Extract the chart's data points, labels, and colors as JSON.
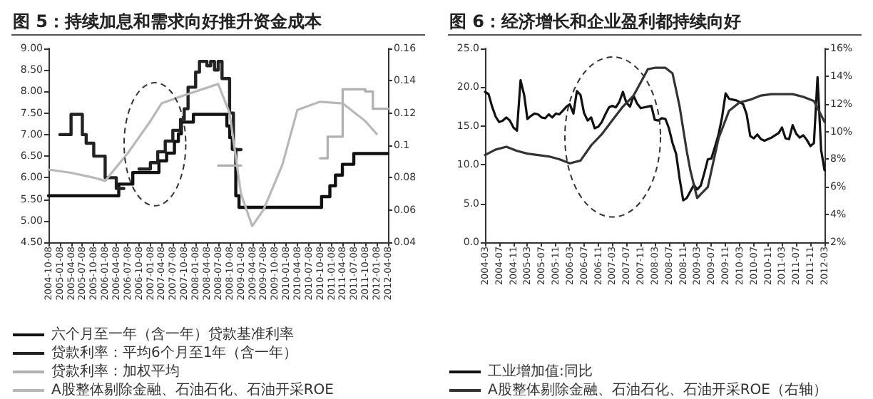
{
  "chart_data": [
    {
      "type": "line",
      "title": "图 5：持续加息和需求向好推升资金成本",
      "xlim": [
        "2004-10-08",
        "2012-04-08"
      ],
      "xticks": [
        "2004-10-08",
        "2005-01-08",
        "2005-04-08",
        "2005-07-08",
        "2005-10-08",
        "2006-01-08",
        "2006-04-08",
        "2006-07-08",
        "2006-10-08",
        "2007-01-08",
        "2007-04-08",
        "2007-07-08",
        "2007-10-08",
        "2008-01-08",
        "2008-04-08",
        "2008-07-08",
        "2008-10-08",
        "2009-01-08",
        "2009-04-08",
        "2009-07-08",
        "2009-10-08",
        "2010-01-08",
        "2010-04-08",
        "2010-07-08",
        "2010-10-08",
        "2011-01-08",
        "2011-04-08",
        "2011-07-08",
        "2011-10-08",
        "2012-01-08",
        "2012-04-08"
      ],
      "ylim": [
        4.5,
        9
      ],
      "yticks": [
        {
          "value": 4.5,
          "label": "4.50"
        },
        {
          "value": 5,
          "label": "5.00"
        },
        {
          "value": 5.5,
          "label": "5.50"
        },
        {
          "value": 6,
          "label": "6.00"
        },
        {
          "value": 6.5,
          "label": "6.50"
        },
        {
          "value": 7,
          "label": "7.00"
        },
        {
          "value": 7.5,
          "label": "7.50"
        },
        {
          "value": 8,
          "label": "8.00"
        },
        {
          "value": 8.5,
          "label": "8.50"
        },
        {
          "value": 9,
          "label": "9.00"
        }
      ],
      "y2lim": [
        0.04,
        0.16
      ],
      "y2ticks": [
        0.04,
        0.06,
        0.08,
        0.1,
        0.12,
        0.14,
        0.16
      ],
      "grid": false,
      "legend": "bottom",
      "marker": "none",
      "line_style": "solid",
      "series": [
        {
          "name": "六个月至一年（含一年）贷款基准利率",
          "type": "step",
          "color": "#111111",
          "x": [
            "2004-10-08",
            "2006-04-28",
            "2006-08-19",
            "2007-03-18",
            "2007-05-19",
            "2007-07-21",
            "2007-08-22",
            "2007-09-15",
            "2007-12-21",
            "2008-09-16",
            "2008-10-09",
            "2008-10-30",
            "2008-11-27",
            "2008-12-23",
            "2010-10-20",
            "2010-12-26",
            "2011-02-09",
            "2011-04-06",
            "2011-07-07",
            "2012-04-08"
          ],
          "values": [
            5.58,
            5.85,
            6.12,
            6.39,
            6.57,
            6.84,
            7.02,
            7.29,
            7.47,
            7.2,
            6.93,
            6.66,
            5.58,
            5.31,
            5.56,
            5.81,
            6.06,
            6.31,
            6.56,
            6.56
          ]
        },
        {
          "name": "贷款利率：平均6个月至1年（含一年）",
          "type": "step",
          "color": "#222222",
          "x": [
            "2005-01-08",
            "2005-04-08",
            "2005-07-08",
            "2005-08-08",
            "2005-10-08",
            "2006-01-08",
            "2006-04-08",
            "2006-06-08",
            "2006-10-08",
            "2007-01-08",
            "2007-03-08",
            "2007-05-08",
            "2007-07-08",
            "2007-09-08",
            "2007-10-08",
            "2007-11-08",
            "2008-01-08",
            "2008-02-08",
            "2008-04-08",
            "2008-05-08",
            "2008-06-08",
            "2008-07-08",
            "2008-08-08",
            "2008-10-08",
            "2008-11-08",
            "2009-01-08"
          ],
          "values": [
            7.0,
            7.47,
            7.0,
            6.8,
            6.5,
            6.0,
            5.75,
            null,
            6.2,
            6.35,
            6.6,
            6.85,
            7.1,
            7.35,
            7.6,
            8.1,
            8.45,
            8.7,
            8.6,
            8.7,
            8.5,
            8.7,
            8.3,
            7.5,
            6.65,
            6.65
          ]
        },
        {
          "name": "贷款利率：加权平均",
          "type": "step",
          "color": "#b0b0b0",
          "x": [
            "2008-07-08",
            "2008-12-08",
            "2009-01-08",
            "2010-10-08",
            "2010-12-08",
            "2011-04-08",
            "2011-10-08",
            "2011-12-08",
            "2012-04-08"
          ],
          "values": [
            6.28,
            6.28,
            null,
            6.45,
            6.95,
            8.05,
            8.0,
            7.6,
            7.6
          ]
        },
        {
          "name": "A股整体剔除金融、石油石化、石油开采ROE",
          "axis": "y2",
          "color": "#b8b8b8",
          "x": [
            "2004-10-08",
            "2005-04-08",
            "2005-10-08",
            "2006-01-08",
            "2006-07-08",
            "2007-01-08",
            "2007-04-08",
            "2007-10-08",
            "2008-07-08",
            "2008-10-08",
            "2009-01-08",
            "2009-04-08",
            "2009-07-08",
            "2009-12-08",
            "2010-04-08",
            "2010-10-08",
            "2011-04-08",
            "2011-10-08",
            "2012-01-08"
          ],
          "values": [
            0.085,
            0.083,
            0.08,
            0.078,
            0.095,
            0.115,
            0.126,
            0.131,
            0.138,
            0.12,
            0.07,
            0.05,
            0.06,
            0.088,
            0.122,
            0.127,
            0.126,
            0.115,
            0.107
          ]
        }
      ]
    },
    {
      "type": "line",
      "title": "图 6：经济增长和企业盈利都持续向好",
      "xlim": [
        "2004-03",
        "2012-03"
      ],
      "xticks": [
        "2004-03",
        "2004-07",
        "2004-11",
        "2005-03",
        "2005-07",
        "2005-11",
        "2006-03",
        "2006-07",
        "2006-11",
        "2007-03",
        "2007-07",
        "2007-11",
        "2008-03",
        "2008-07",
        "2008-11",
        "2009-03",
        "2009-07",
        "2009-11",
        "2010-03",
        "2010-07",
        "2010-11",
        "2011-03",
        "2011-07",
        "2011-11",
        "2012-03"
      ],
      "ylim": [
        0,
        25
      ],
      "yticks": [
        {
          "value": 0,
          "label": "0.0"
        },
        {
          "value": 5,
          "label": "5.0"
        },
        {
          "value": 10,
          "label": "10.0"
        },
        {
          "value": 15,
          "label": "15.0"
        },
        {
          "value": 20,
          "label": "20.0"
        },
        {
          "value": 25,
          "label": "25.0"
        }
      ],
      "y2lim": [
        2,
        16
      ],
      "y2ticks": [
        {
          "value": 2,
          "label": "2%"
        },
        {
          "value": 4,
          "label": "4%"
        },
        {
          "value": 6,
          "label": "6%"
        },
        {
          "value": 8,
          "label": "8%"
        },
        {
          "value": 10,
          "label": "10%"
        },
        {
          "value": 12,
          "label": "12%"
        },
        {
          "value": 14,
          "label": "14%"
        },
        {
          "value": 16,
          "label": "16%"
        }
      ],
      "grid": false,
      "legend": "bottom",
      "marker": "none",
      "line_style": "solid",
      "series": [
        {
          "name": "工业增加值:同比",
          "color": "#111111",
          "x": [
            "2004-03",
            "2004-04",
            "2004-05",
            "2004-06",
            "2004-07",
            "2004-08",
            "2004-09",
            "2004-10",
            "2004-11",
            "2004-12",
            "2005-01",
            "2005-02",
            "2005-03",
            "2005-04",
            "2005-05",
            "2005-06",
            "2005-07",
            "2005-08",
            "2005-09",
            "2005-10",
            "2005-11",
            "2005-12",
            "2006-01",
            "2006-02",
            "2006-03",
            "2006-04",
            "2006-05",
            "2006-06",
            "2006-07",
            "2006-08",
            "2006-09",
            "2006-10",
            "2006-11",
            "2006-12",
            "2007-01",
            "2007-02",
            "2007-03",
            "2007-04",
            "2007-05",
            "2007-06",
            "2007-07",
            "2007-08",
            "2007-09",
            "2007-10",
            "2007-11",
            "2007-12",
            "2008-01",
            "2008-02",
            "2008-03",
            "2008-04",
            "2008-05",
            "2008-06",
            "2008-07",
            "2008-08",
            "2008-09",
            "2008-10",
            "2008-11",
            "2008-12",
            "2009-02",
            "2009-03",
            "2009-04",
            "2009-05",
            "2009-06",
            "2009-07",
            "2009-08",
            "2009-09",
            "2009-10",
            "2009-11",
            "2009-12",
            "2010-02",
            "2010-03",
            "2010-04",
            "2010-05",
            "2010-06",
            "2010-07",
            "2010-08",
            "2010-09",
            "2010-10",
            "2010-11",
            "2010-12",
            "2011-02",
            "2011-03",
            "2011-04",
            "2011-05",
            "2011-06",
            "2011-07",
            "2011-08",
            "2011-09",
            "2011-10",
            "2011-11",
            "2011-12",
            "2012-01",
            "2012-02",
            "2012-03"
          ],
          "values": [
            19.4,
            19.1,
            17.5,
            16.2,
            15.5,
            15.7,
            16.1,
            15.7,
            14.8,
            14.4,
            20.9,
            19.0,
            15.9,
            16.3,
            16.6,
            16.5,
            16.1,
            16.0,
            16.5,
            16.1,
            16.6,
            16.5,
            17.0,
            17.5,
            17.8,
            16.6,
            19.5,
            19.0,
            16.7,
            15.7,
            16.1,
            14.7,
            14.9,
            15.5,
            16.5,
            17.4,
            17.6,
            17.4,
            18.1,
            19.4,
            18.0,
            17.5,
            18.9,
            17.9,
            17.3,
            17.4,
            17.5,
            17.6,
            15.8,
            15.7,
            16.0,
            15.9,
            14.7,
            12.8,
            11.4,
            8.2,
            5.4,
            5.7,
            7.4,
            6.8,
            7.3,
            8.9,
            10.7,
            10.8,
            12.3,
            13.9,
            16.1,
            19.2,
            18.5,
            18.3,
            18.1,
            17.8,
            16.5,
            13.7,
            13.4,
            13.9,
            13.3,
            13.1,
            13.3,
            13.5,
            14.1,
            14.8,
            13.4,
            13.3,
            15.1,
            14.0,
            13.5,
            13.8,
            13.2,
            12.4,
            12.8,
            21.3,
            11.9,
            9.3
          ]
        },
        {
          "name": "A股整体剔除金融、石油石化、石油开采ROE（右轴）",
          "axis": "y2",
          "color": "#333333",
          "x": [
            "2004-03",
            "2004-06",
            "2004-09",
            "2004-12",
            "2005-03",
            "2005-06",
            "2005-09",
            "2005-12",
            "2006-03",
            "2006-06",
            "2006-09",
            "2006-12",
            "2007-03",
            "2007-06",
            "2007-09",
            "2007-12",
            "2008-01",
            "2008-03",
            "2008-06",
            "2008-08",
            "2008-09",
            "2008-10",
            "2008-12",
            "2009-01",
            "2009-03",
            "2009-06",
            "2009-09",
            "2009-12",
            "2010-03",
            "2010-06",
            "2010-09",
            "2010-12",
            "2011-03",
            "2011-06",
            "2011-09",
            "2011-12",
            "2012-03"
          ],
          "values": [
            8.3,
            8.7,
            8.9,
            8.6,
            8.4,
            8.3,
            8.2,
            8.0,
            7.7,
            7.9,
            9.0,
            9.8,
            10.8,
            11.8,
            12.6,
            14.0,
            14.5,
            14.6,
            14.6,
            14.2,
            13.0,
            11.8,
            8.6,
            7.2,
            5.2,
            6.0,
            9.5,
            11.5,
            12.1,
            12.3,
            12.6,
            12.7,
            12.7,
            12.7,
            12.5,
            12.2,
            10.7
          ]
        }
      ]
    }
  ]
}
